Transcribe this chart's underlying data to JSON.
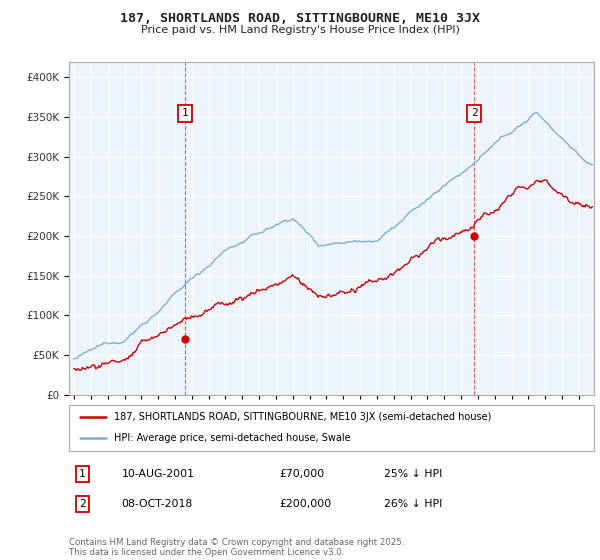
{
  "title": "187, SHORTLANDS ROAD, SITTINGBOURNE, ME10 3JX",
  "subtitle": "Price paid vs. HM Land Registry's House Price Index (HPI)",
  "legend_line1": "187, SHORTLANDS ROAD, SITTINGBOURNE, ME10 3JX (semi-detached house)",
  "legend_line2": "HPI: Average price, semi-detached house, Swale",
  "annotation1_date": "10-AUG-2001",
  "annotation1_price": "£70,000",
  "annotation1_hpi": "25% ↓ HPI",
  "annotation1_year": 2001.6,
  "annotation1_value": 70000,
  "annotation2_date": "08-OCT-2018",
  "annotation2_price": "£200,000",
  "annotation2_hpi": "26% ↓ HPI",
  "annotation2_year": 2018.78,
  "annotation2_value": 200000,
  "footer": "Contains HM Land Registry data © Crown copyright and database right 2025.\nThis data is licensed under the Open Government Licence v3.0.",
  "hpi_color": "#7bafd4",
  "price_color": "#cc0000",
  "background_color": "#ffffff",
  "grid_color": "#dce6f0",
  "ylim": [
    0,
    420000
  ],
  "yticks": [
    0,
    50000,
    100000,
    150000,
    200000,
    250000,
    300000,
    350000,
    400000
  ],
  "xlim_start": 1994.7,
  "xlim_end": 2025.9
}
